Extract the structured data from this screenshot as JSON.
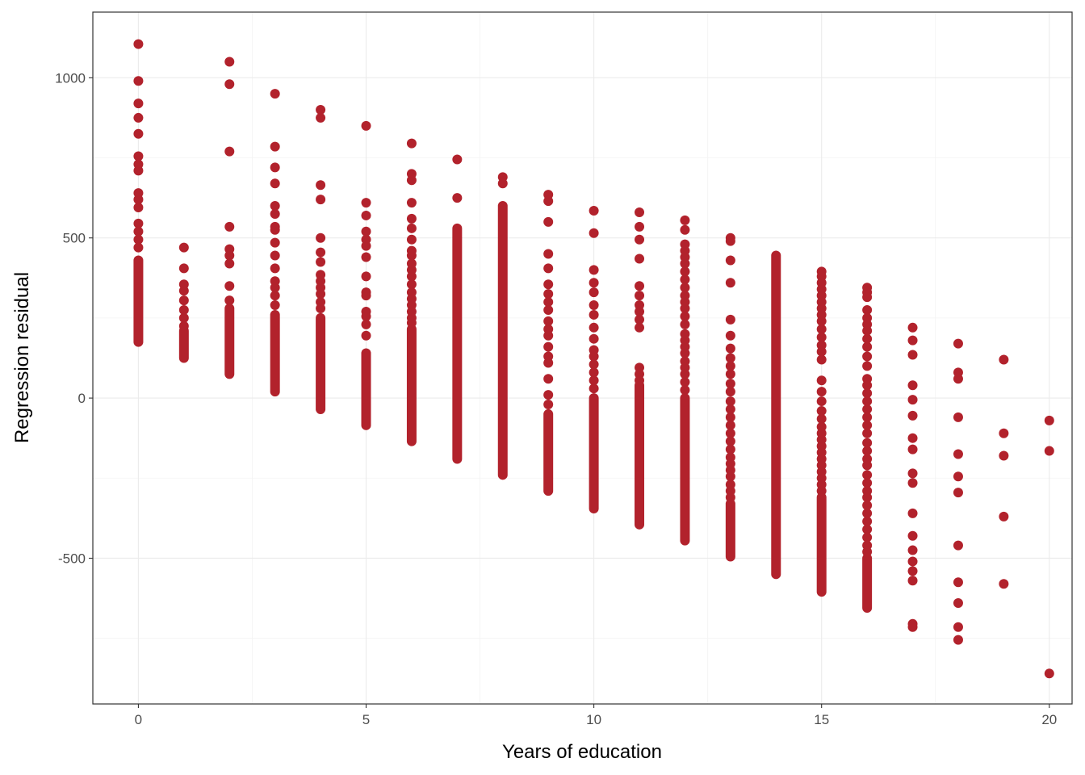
{
  "chart_data": {
    "type": "scatter",
    "title": "",
    "xlabel": "Years of education",
    "ylabel": "Regression residual",
    "xlim": [
      -1,
      20.5
    ],
    "ylim": [
      -955,
      1205
    ],
    "x_ticks": [
      {
        "value": 0,
        "label": "0"
      },
      {
        "value": 5,
        "label": "5"
      },
      {
        "value": 10,
        "label": "10"
      },
      {
        "value": 15,
        "label": "15"
      },
      {
        "value": 20,
        "label": "20"
      }
    ],
    "y_ticks": [
      {
        "value": -500,
        "label": "-500"
      },
      {
        "value": 0,
        "label": "0"
      },
      {
        "value": 500,
        "label": "500"
      },
      {
        "value": 1000,
        "label": "1000"
      }
    ],
    "grid": true,
    "point_color": "#b2222c",
    "columns": [
      {
        "x": 0,
        "band": [
          175,
          430
        ],
        "points": [
          1105,
          990,
          920,
          875,
          825,
          755,
          730,
          710,
          640,
          620,
          595,
          545,
          520,
          495,
          470
        ]
      },
      {
        "x": 1,
        "band": [
          125,
          210
        ],
        "points": [
          470,
          405,
          355,
          335,
          305,
          275,
          250,
          225
        ]
      },
      {
        "x": 2,
        "band": [
          75,
          280
        ],
        "points": [
          1050,
          980,
          770,
          535,
          465,
          445,
          420,
          350,
          305
        ]
      },
      {
        "x": 3,
        "band": [
          20,
          260
        ],
        "points": [
          950,
          785,
          720,
          670,
          600,
          575,
          535,
          525,
          485,
          445,
          405,
          365,
          345,
          320,
          290
        ]
      },
      {
        "x": 4,
        "band": [
          -35,
          250
        ],
        "points": [
          900,
          875,
          665,
          620,
          500,
          455,
          425,
          385,
          365,
          345,
          325,
          300,
          280
        ]
      },
      {
        "x": 5,
        "band": [
          -85,
          140
        ],
        "points": [
          850,
          610,
          570,
          520,
          495,
          475,
          440,
          380,
          330,
          320,
          270,
          255,
          230,
          195
        ]
      },
      {
        "x": 6,
        "band": [
          -135,
          215
        ],
        "points": [
          795,
          700,
          680,
          610,
          560,
          530,
          495,
          460,
          445,
          420,
          400,
          380,
          355,
          330,
          310,
          290,
          270,
          250,
          235
        ]
      },
      {
        "x": 7,
        "band": [
          -190,
          530
        ],
        "points": [
          745,
          625
        ]
      },
      {
        "x": 8,
        "band": [
          -240,
          600
        ],
        "points": [
          690,
          670
        ]
      },
      {
        "x": 9,
        "band": [
          -290,
          -50
        ],
        "points": [
          635,
          615,
          550,
          450,
          405,
          355,
          325,
          300,
          275,
          240,
          215,
          195,
          160,
          130,
          110,
          60,
          10,
          -20
        ]
      },
      {
        "x": 10,
        "band": [
          -345,
          0
        ],
        "points": [
          585,
          515,
          400,
          360,
          330,
          290,
          260,
          220,
          185,
          150,
          130,
          105,
          80,
          55,
          30
        ]
      },
      {
        "x": 11,
        "band": [
          -395,
          40
        ],
        "points": [
          580,
          535,
          495,
          435,
          350,
          320,
          290,
          270,
          245,
          220,
          95,
          75,
          55
        ]
      },
      {
        "x": 12,
        "band": [
          -445,
          0
        ],
        "points": [
          555,
          525,
          480,
          460,
          440,
          420,
          395,
          370,
          345,
          320,
          300,
          280,
          255,
          230,
          200,
          180,
          160,
          140,
          115,
          95,
          75,
          50,
          25
        ]
      },
      {
        "x": 13,
        "band": [
          -495,
          -330
        ],
        "points": [
          500,
          490,
          430,
          360,
          245,
          195,
          155,
          125,
          100,
          75,
          45,
          20,
          -10,
          -35,
          -60,
          -85,
          -110,
          -135,
          -160,
          -185,
          -205,
          -225,
          -245,
          -270,
          -290,
          -310
        ]
      },
      {
        "x": 14,
        "band": [
          -550,
          445
        ],
        "points": []
      },
      {
        "x": 15,
        "band": [
          -605,
          -310
        ],
        "points": [
          395,
          380,
          360,
          340,
          320,
          300,
          280,
          260,
          240,
          215,
          190,
          165,
          145,
          120,
          55,
          20,
          -10,
          -40,
          -65,
          -90,
          -110,
          -130,
          -150,
          -170,
          -190,
          -210,
          -230,
          -250,
          -270,
          -290
        ]
      },
      {
        "x": 16,
        "band": [
          -655,
          -500
        ],
        "points": [
          345,
          330,
          315,
          275,
          250,
          230,
          210,
          185,
          160,
          130,
          100,
          60,
          40,
          15,
          -10,
          -35,
          -60,
          -85,
          -110,
          -140,
          -165,
          -190,
          -210,
          -240,
          -265,
          -290,
          -310,
          -335,
          -360,
          -385,
          -410,
          -435,
          -460,
          -480
        ]
      },
      {
        "x": 17,
        "points": [
          220,
          180,
          135,
          40,
          -5,
          -55,
          -125,
          -160,
          -235,
          -265,
          -360,
          -430,
          -475,
          -510,
          -540,
          -570,
          -705,
          -715
        ]
      },
      {
        "x": 18,
        "points": [
          170,
          80,
          60,
          -60,
          -175,
          -245,
          -295,
          -460,
          -575,
          -640,
          -715,
          -755
        ]
      },
      {
        "x": 19,
        "points": [
          120,
          -110,
          -180,
          -370,
          -580
        ]
      },
      {
        "x": 20,
        "points": [
          -70,
          -165,
          -860
        ]
      }
    ]
  }
}
